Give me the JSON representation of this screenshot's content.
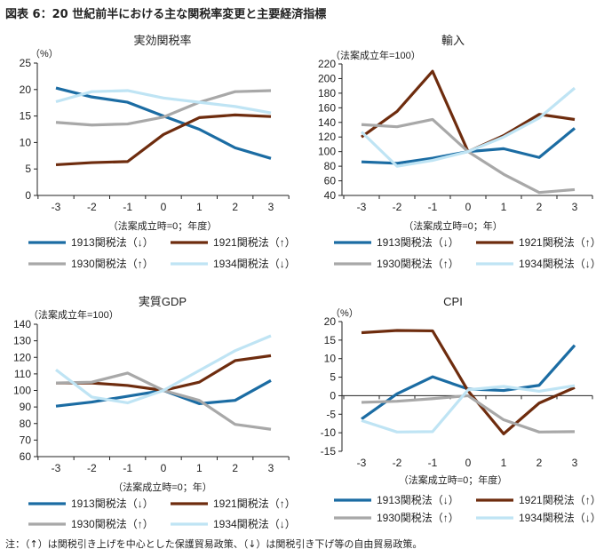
{
  "title": "図表 6：20 世紀前半における主な関税率変更と主要経済指標",
  "footnote": "注：（↑）は関税引き上げを中心とした保護貿易政策、（↓）は関税引き下げ等の自由貿易政策。",
  "colors": {
    "1913": "#1b6ca3",
    "1921": "#6e2c0e",
    "1930": "#a8a8a8",
    "1934": "#bfe4f4"
  },
  "chart_data": [
    {
      "type": "line",
      "title": "実効関税率",
      "ylabel": "（%）",
      "xlabel": "（法案成立時=0；年度）",
      "x": [
        -3,
        -2,
        -1,
        0,
        1,
        2,
        3
      ],
      "ylim": [
        0,
        25
      ],
      "yticks": [
        0,
        5,
        10,
        15,
        20,
        25
      ],
      "series": [
        {
          "key": "1913",
          "name": "1913関税法（↓）",
          "values": [
            20.3,
            18.6,
            17.6,
            15.0,
            12.5,
            9.0,
            7.0
          ]
        },
        {
          "key": "1921",
          "name": "1921関税法（↑）",
          "values": [
            5.8,
            6.2,
            6.4,
            11.5,
            14.7,
            15.2,
            14.9
          ]
        },
        {
          "key": "1930",
          "name": "1930関税法（↑）",
          "values": [
            13.8,
            13.3,
            13.5,
            14.8,
            17.6,
            19.6,
            19.8
          ]
        },
        {
          "key": "1934",
          "name": "1934関税法（↓）",
          "values": [
            17.7,
            19.6,
            19.8,
            18.4,
            17.6,
            16.8,
            15.6
          ]
        }
      ]
    },
    {
      "type": "line",
      "title": "輸入",
      "ylabel": "（法案成立年=100）",
      "xlabel": "（法案成立時=0；年）",
      "x": [
        -3,
        -2,
        -1,
        0,
        1,
        2,
        3
      ],
      "ylim": [
        40,
        220
      ],
      "yticks": [
        40,
        60,
        80,
        100,
        120,
        140,
        160,
        180,
        200,
        220
      ],
      "series": [
        {
          "key": "1913",
          "name": "1913関税法（↓）",
          "values": [
            86,
            84,
            91,
            100,
            104,
            92,
            132
          ]
        },
        {
          "key": "1921",
          "name": "1921関税法（↑）",
          "values": [
            120,
            155,
            210,
            100,
            122,
            151,
            144
          ]
        },
        {
          "key": "1930",
          "name": "1930関税法（↑）",
          "values": [
            137,
            134,
            144,
            100,
            69,
            44,
            48
          ]
        },
        {
          "key": "1934",
          "name": "1934関税法（↓）",
          "values": [
            127,
            80,
            88,
            100,
            120,
            146,
            187
          ]
        }
      ]
    },
    {
      "type": "line",
      "title": "実質GDP",
      "ylabel": "（法案成立年=100）",
      "xlabel": "（法案成立時=0；年）",
      "x": [
        -3,
        -2,
        -1,
        0,
        1,
        2,
        3
      ],
      "ylim": [
        60,
        140
      ],
      "yticks": [
        60,
        70,
        80,
        90,
        100,
        110,
        120,
        130,
        140
      ],
      "series": [
        {
          "key": "1913",
          "name": "1913関税法（↓）",
          "values": [
            90.5,
            93,
            96.5,
            100,
            92,
            94,
            106
          ]
        },
        {
          "key": "1921",
          "name": "1921関税法（↑）",
          "values": [
            104.5,
            104.5,
            103,
            100,
            105,
            118,
            121
          ]
        },
        {
          "key": "1930",
          "name": "1930関税法（↑）",
          "values": [
            104.5,
            105,
            110.5,
            100,
            94,
            79.5,
            76.5
          ]
        },
        {
          "key": "1934",
          "name": "1934関税法（↓）",
          "values": [
            112.5,
            96,
            92.5,
            100,
            112,
            124,
            133
          ]
        }
      ]
    },
    {
      "type": "line",
      "title": "CPI",
      "ylabel": "（%）",
      "xlabel": "（法案成立時=0；年度）",
      "x": [
        -3,
        -2,
        -1,
        0,
        1,
        2,
        3
      ],
      "ylim": [
        -15,
        20
      ],
      "yticks": [
        -15,
        -10,
        -5,
        0,
        5,
        10,
        15,
        20
      ],
      "series": [
        {
          "key": "1913",
          "name": "1913関税法（↓）",
          "values": [
            -6.3,
            0.5,
            5.1,
            1.8,
            1.4,
            2.8,
            13.6
          ]
        },
        {
          "key": "1921",
          "name": "1921関税法（↑）",
          "values": [
            17.0,
            17.6,
            17.5,
            1.3,
            -10.3,
            -2.0,
            2.2
          ]
        },
        {
          "key": "1930",
          "name": "1930関税法（↑）",
          "values": [
            -1.8,
            -1.5,
            -0.8,
            0,
            -6.5,
            -9.8,
            -9.7
          ]
        },
        {
          "key": "1934",
          "name": "1934関税法（↓）",
          "values": [
            -6.7,
            -9.8,
            -9.7,
            1.6,
            2.5,
            1.2,
            2.7
          ]
        }
      ]
    }
  ]
}
